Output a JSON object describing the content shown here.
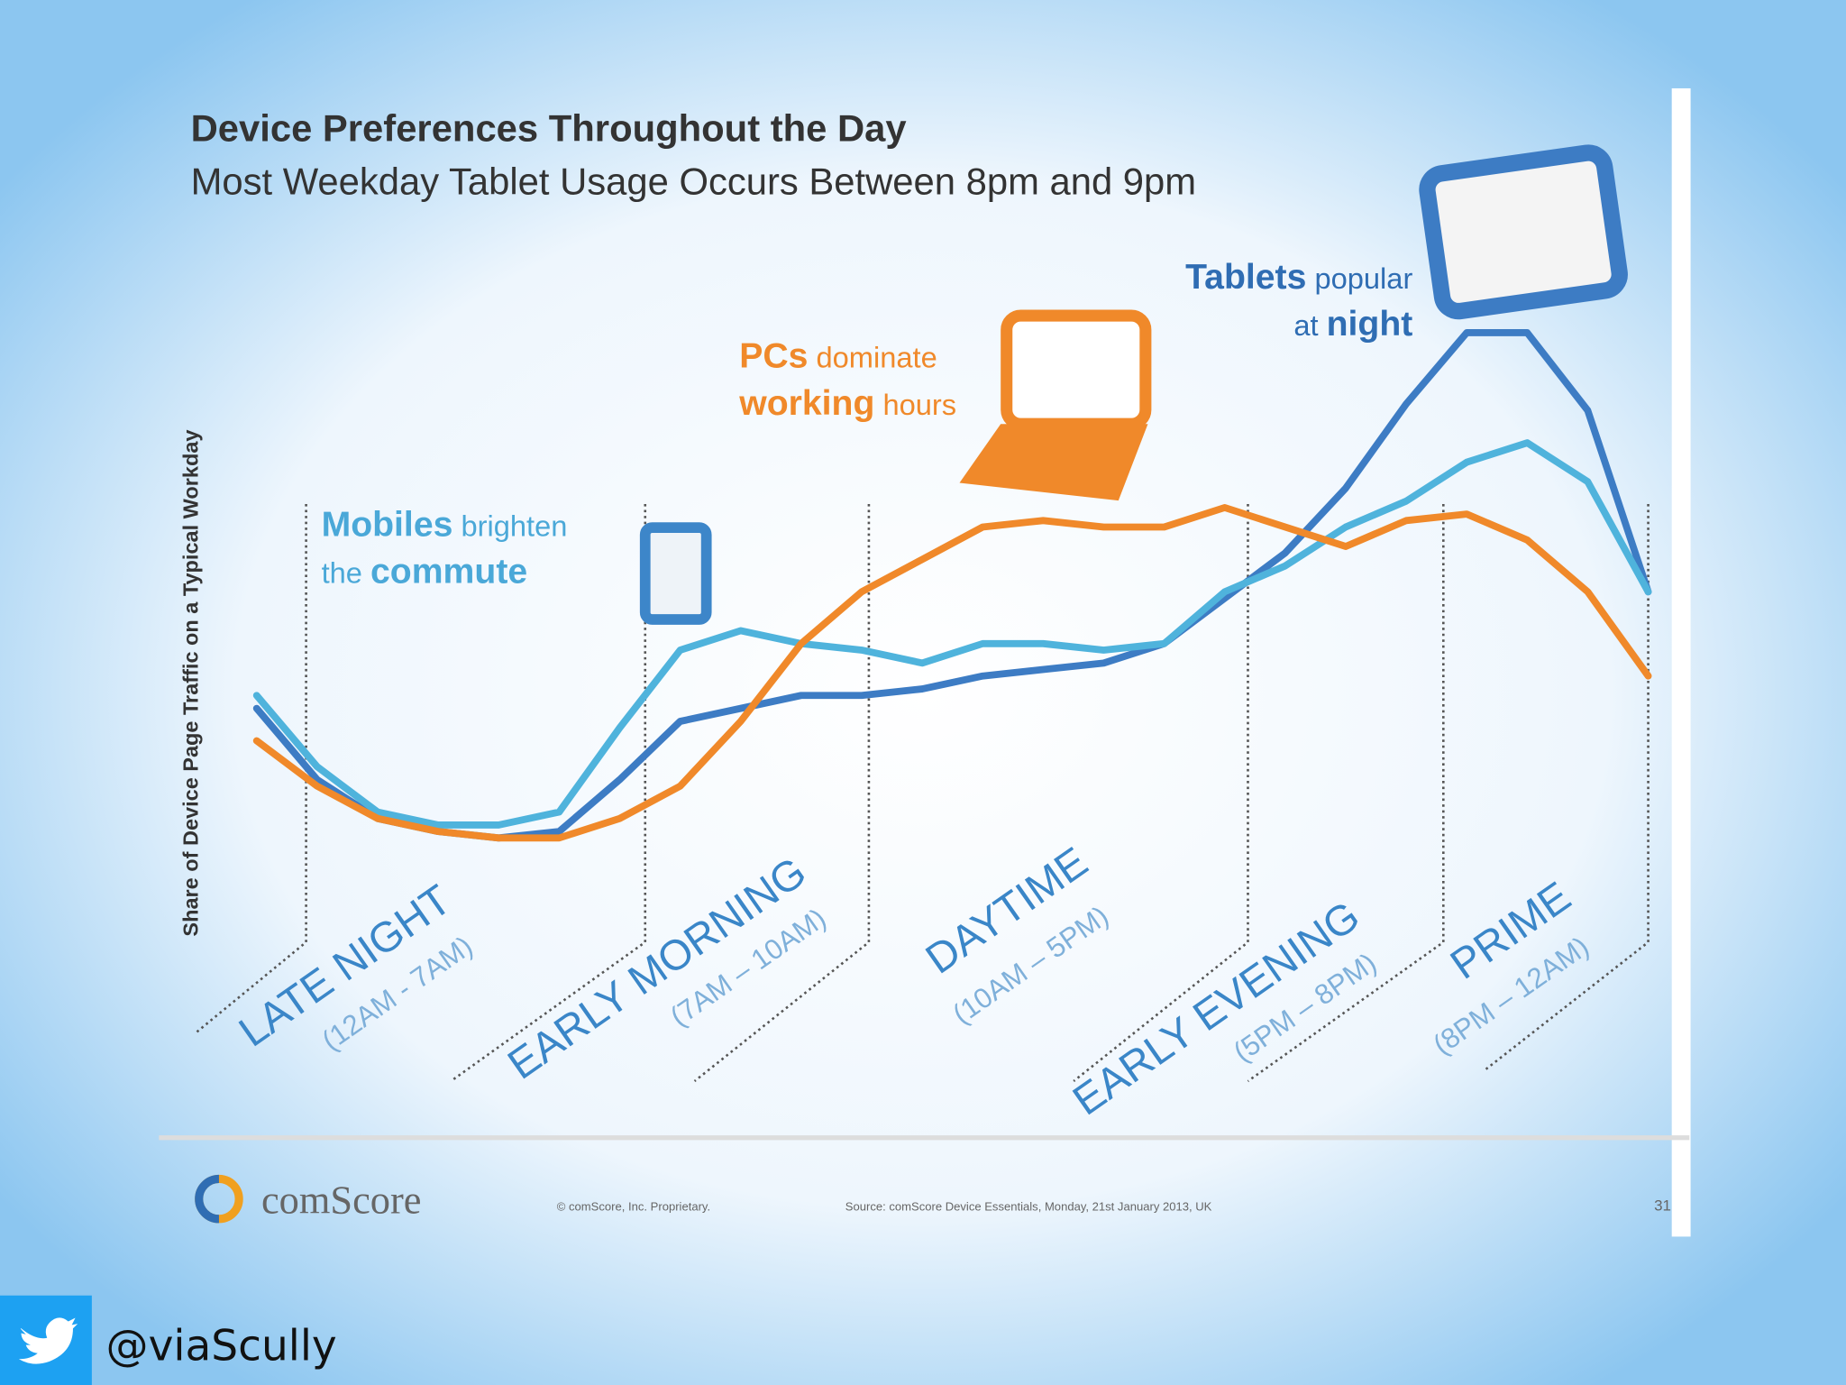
{
  "chart_data": {
    "type": "line",
    "title": "Device Preferences Throughout the Day",
    "subtitle": "Most Weekday Tablet Usage Occurs Between 8pm and 9pm",
    "y_label": "Share of Device Page Traffic on a Typical Workday",
    "ylim": [
      0,
      100
    ],
    "series": [
      {
        "color": "#3d7cc4",
        "values": [
          27,
          16,
          10,
          8,
          7,
          8,
          16,
          25,
          27,
          29,
          29,
          30,
          32,
          33,
          34,
          37,
          44,
          51,
          61,
          74,
          85,
          85,
          73,
          45
        ]
      },
      {
        "color": "#4fb3dc",
        "values": [
          29,
          18,
          11,
          9,
          9,
          11,
          24,
          36,
          39,
          37,
          36,
          34,
          37,
          37,
          36,
          37,
          45,
          49,
          55,
          59,
          65,
          68,
          62,
          45
        ]
      },
      {
        "color": "#f0892a",
        "values": [
          22,
          15,
          10,
          8,
          7,
          7,
          10,
          15,
          25,
          37,
          45,
          50,
          55,
          56,
          55,
          55,
          58,
          55,
          52,
          56,
          57,
          53,
          45,
          32
        ]
      }
    ],
    "annotations": [
      {
        "color": "#4aa8d8",
        "lines": [
          [
            {
              "text": "Mobiles",
              "bold": true
            },
            {
              "text": " brighten",
              "bold": false
            }
          ],
          [
            {
              "text": "the ",
              "bold": false
            },
            {
              "text": "commute",
              "bold": true
            }
          ]
        ]
      },
      {
        "color": "#f0892a",
        "lines": [
          [
            {
              "text": "PCs",
              "bold": true
            },
            {
              "text": " dominate",
              "bold": false
            }
          ],
          [
            {
              "text": "working",
              "bold": true
            },
            {
              "text": " hours",
              "bold": false
            }
          ]
        ]
      },
      {
        "color": "#2f6db3",
        "lines": [
          [
            {
              "text": "Tablets",
              "bold": true
            },
            {
              "text": " popular",
              "bold": false
            }
          ],
          [
            {
              "text": "at ",
              "bold": false
            },
            {
              "text": "night",
              "bold": true
            }
          ]
        ]
      }
    ],
    "periods": [
      {
        "name": "LATE NIGHT",
        "range": "(12AM - 7AM)"
      },
      {
        "name": "EARLY MORNING",
        "range": "(7AM – 10AM)"
      },
      {
        "name": "DAYTIME",
        "range": "(10AM – 5PM)"
      },
      {
        "name": "EARLY EVENING",
        "range": "(5PM – 8PM)"
      },
      {
        "name": "PRIME",
        "range": "(8PM – 12AM)"
      }
    ],
    "footer": {
      "brand": "comScore",
      "copyright": "© comScore, Inc.   Proprietary.",
      "source": "Source: comScore Device Essentials, Monday, 21st January 2013, UK",
      "page": "31"
    }
  },
  "handle": "@viaScully"
}
